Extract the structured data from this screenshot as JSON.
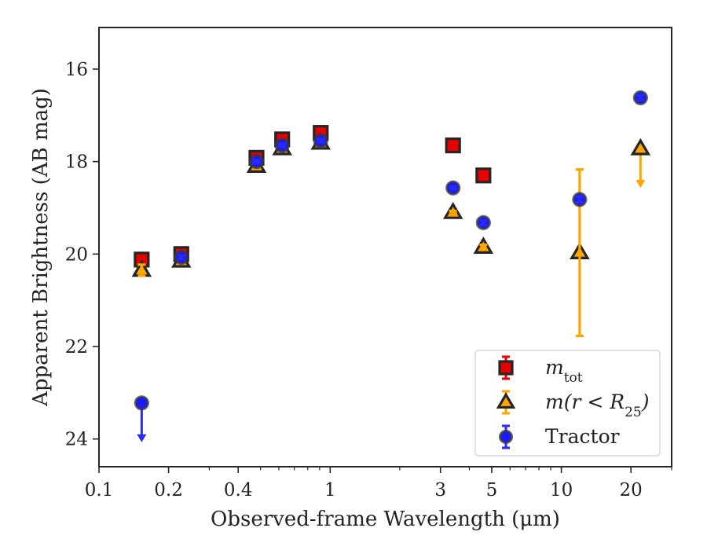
{
  "chart_data": {
    "type": "scatter",
    "xlabel": "Observed-frame Wavelength (μm)",
    "ylabel": "Apparent Brightness (AB mag)",
    "x_scale": "log",
    "xlim": [
      0.1,
      30
    ],
    "ylim": [
      24.6,
      15.1
    ],
    "y_inverted": true,
    "x_ticks": [
      {
        "value": 0.1,
        "label": "0.1"
      },
      {
        "value": 0.2,
        "label": "0.2"
      },
      {
        "value": 0.4,
        "label": "0.4"
      },
      {
        "value": 1,
        "label": "1"
      },
      {
        "value": 3,
        "label": "3"
      },
      {
        "value": 5,
        "label": "5"
      },
      {
        "value": 10,
        "label": "10"
      },
      {
        "value": 20,
        "label": "20"
      }
    ],
    "y_ticks": [
      {
        "value": 16,
        "label": "16"
      },
      {
        "value": 18,
        "label": "18"
      },
      {
        "value": 20,
        "label": "20"
      },
      {
        "value": 22,
        "label": "22"
      },
      {
        "value": 24,
        "label": "24"
      }
    ],
    "grid": false,
    "legend_position": "lower-right",
    "series": [
      {
        "key": "mtot",
        "legend": {
          "main": "m",
          "sub": "tot"
        },
        "marker": "square",
        "fill": "#e60000",
        "errorbar_color": "#e60000",
        "points": [
          {
            "x": 0.153,
            "y": 20.12,
            "err": 0.05
          },
          {
            "x": 0.227,
            "y": 20.0,
            "err": 0.04
          },
          {
            "x": 0.48,
            "y": 17.92,
            "err": 0.03
          },
          {
            "x": 0.62,
            "y": 17.52,
            "err": 0.03
          },
          {
            "x": 0.91,
            "y": 17.38,
            "err": 0.03
          },
          {
            "x": 3.4,
            "y": 17.65,
            "err": 0.03
          },
          {
            "x": 4.6,
            "y": 18.3,
            "err": 0.03
          }
        ]
      },
      {
        "key": "mr25",
        "legend": {
          "main": "m(r < R",
          "sub": "25",
          "tail": ")"
        },
        "marker": "triangle",
        "fill": "#ffa500",
        "errorbar_color": "#ffa500",
        "points": [
          {
            "x": 0.153,
            "y": 20.35,
            "err": 0.12
          },
          {
            "x": 0.227,
            "y": 20.15,
            "err": 0.04
          },
          {
            "x": 0.48,
            "y": 18.1,
            "err": 0.03
          },
          {
            "x": 0.62,
            "y": 17.72,
            "err": 0.03
          },
          {
            "x": 0.91,
            "y": 17.6,
            "err": 0.03
          },
          {
            "x": 3.4,
            "y": 19.1,
            "err": 0.03
          },
          {
            "x": 4.6,
            "y": 19.85,
            "err": 0.05
          },
          {
            "x": 12.0,
            "y": 19.97,
            "err": 1.8
          },
          {
            "x": 22.0,
            "y": 17.72,
            "err": 0.0,
            "upper_limit": true
          }
        ]
      },
      {
        "key": "tractor",
        "legend": {
          "main": "Tractor"
        },
        "marker": "circle",
        "fill": "#1a1aff",
        "errorbar_color": "#2a2aff",
        "points": [
          {
            "x": 0.153,
            "y": 23.22,
            "err": 0.0,
            "upper_limit": true
          },
          {
            "x": 0.227,
            "y": 20.07,
            "err": 0.04
          },
          {
            "x": 0.48,
            "y": 18.0,
            "err": 0.03
          },
          {
            "x": 0.62,
            "y": 17.65,
            "err": 0.03
          },
          {
            "x": 0.91,
            "y": 17.55,
            "err": 0.03
          },
          {
            "x": 3.4,
            "y": 18.57,
            "err": 0.03
          },
          {
            "x": 4.6,
            "y": 19.32,
            "err": 0.05
          },
          {
            "x": 12.0,
            "y": 18.82,
            "err": 0.06
          },
          {
            "x": 22.0,
            "y": 16.62,
            "err": 0.05
          }
        ]
      }
    ]
  }
}
